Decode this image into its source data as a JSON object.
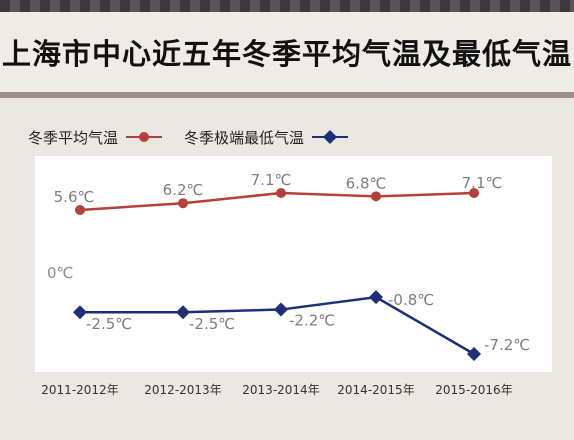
{
  "chart_data": {
    "type": "line",
    "title": "上海市中心近五年冬季平均气温及最低气温",
    "categories": [
      "2011-2012年",
      "2012-2013年",
      "2013-2014年",
      "2014-2015年",
      "2015-2016年"
    ],
    "series": [
      {
        "name": "冬季平均气温",
        "values": [
          5.6,
          6.2,
          7.1,
          6.8,
          7.1
        ],
        "labels": [
          "5.6℃",
          "6.2℃",
          "7.1℃",
          "6.8℃",
          "7.1℃"
        ],
        "color": "#b5403a",
        "marker": "circle"
      },
      {
        "name": "冬季极端最低气温",
        "values": [
          -2.5,
          -2.5,
          -2.2,
          -0.8,
          -7.2
        ],
        "labels": [
          "-2.5℃",
          "-2.5℃",
          "-2.2℃",
          "-0.8℃",
          "-7.2℃"
        ],
        "color": "#1c2f78",
        "marker": "diamond"
      }
    ],
    "reference_label": "0℃",
    "xlabel": "",
    "ylabel": "",
    "grid": false,
    "legend_position": "top-left"
  }
}
